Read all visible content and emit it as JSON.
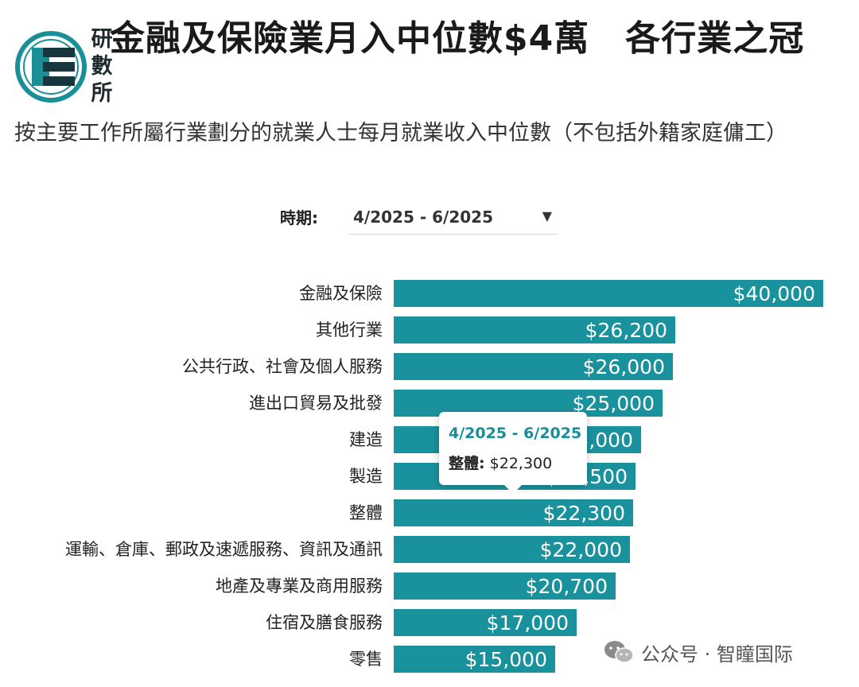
{
  "logo": {
    "chars": [
      "研",
      "數",
      "所"
    ],
    "colors": {
      "ring": "#1b8f97",
      "bars": "#17373f"
    }
  },
  "title": "金融及保險業月入中位數$4萬　各行業之冠",
  "subtitle": "按主要工作所屬行業劃分的就業人士每月就業收入中位數（不包括外籍家庭傭工）",
  "period": {
    "label": "時期:",
    "value": "4/2025 - 6/2025"
  },
  "tooltip": {
    "period": "4/2025 - 6/2025",
    "key": "整體:",
    "value": "$22,300"
  },
  "watermark": {
    "text": "公众号 · 智瞳国际",
    "icon": "wechat-icon"
  },
  "colors": {
    "bar": "#1a929e",
    "bar_label": "#ffffff"
  },
  "chart_data": {
    "type": "bar",
    "orientation": "horizontal",
    "categories": [
      "金融及保險",
      "其他行業",
      "公共行政、社會及個人服務",
      "進出口貿易及批發",
      "建造",
      "製造",
      "整體",
      "運輸、倉庫、郵政及速遞服務、資訊及通訊",
      "地產及專業及商用服務",
      "住宿及膳食服務",
      "零售"
    ],
    "values": [
      40000,
      26200,
      26000,
      25000,
      23000,
      22500,
      22300,
      22000,
      20700,
      17000,
      15000
    ],
    "value_labels": [
      "$40,000",
      "$26,200",
      "$26,000",
      "$25,000",
      "$23,000",
      "$22,500",
      "$22,300",
      "$22,000",
      "$20,700",
      "$17,000",
      "$15,000"
    ],
    "xlim": [
      0,
      40000
    ],
    "grid": false,
    "legend": "none"
  }
}
